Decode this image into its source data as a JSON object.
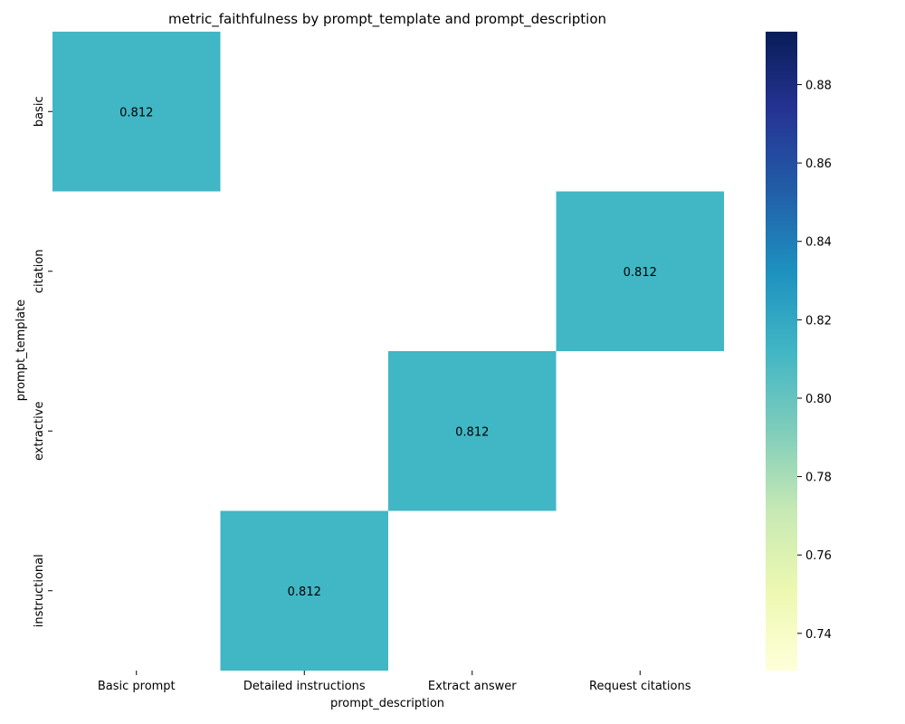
{
  "chart_data": {
    "type": "heatmap",
    "title": "metric_faithfulness by prompt_template and prompt_description",
    "xlabel": "prompt_description",
    "ylabel": "prompt_template",
    "x_categories": [
      "Basic prompt",
      "Detailed instructions",
      "Extract answer",
      "Request citations"
    ],
    "y_categories": [
      "basic",
      "citation",
      "extractive",
      "instructional"
    ],
    "cells": [
      {
        "row": "basic",
        "col": "Basic prompt",
        "value": 0.812,
        "label": "0.812"
      },
      {
        "row": "citation",
        "col": "Request citations",
        "value": 0.812,
        "label": "0.812"
      },
      {
        "row": "extractive",
        "col": "Extract answer",
        "value": 0.812,
        "label": "0.812"
      },
      {
        "row": "instructional",
        "col": "Detailed instructions",
        "value": 0.812,
        "label": "0.812"
      }
    ],
    "colorbar": {
      "colormap": "YlGnBu",
      "range": [
        0.7305,
        0.8935
      ],
      "ticks": [
        0.74,
        0.76,
        0.78,
        0.8,
        0.82,
        0.84,
        0.86,
        0.88
      ],
      "tick_labels": [
        "0.74",
        "0.76",
        "0.78",
        "0.80",
        "0.82",
        "0.84",
        "0.86",
        "0.88"
      ]
    },
    "cell_color": "#41b6c4",
    "annotation_color": "#ffffff",
    "grid": false
  }
}
